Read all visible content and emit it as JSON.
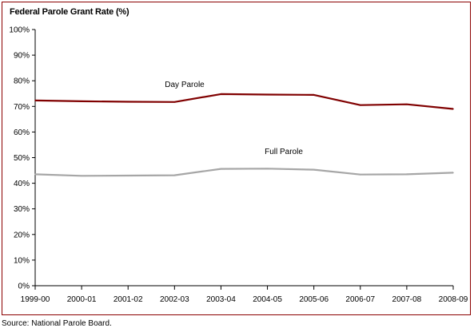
{
  "title": "Federal Parole Grant Rate (%)",
  "source": "Source:  National Parole Board.",
  "chart_data": {
    "type": "line",
    "title": "Federal Parole Grant Rate (%)",
    "xlabel": "",
    "ylabel": "",
    "categories": [
      "1999-00",
      "2000-01",
      "2001-02",
      "2002-03",
      "2003-04",
      "2004-05",
      "2005-06",
      "2006-07",
      "2007-08",
      "2008-09"
    ],
    "ylim": [
      0,
      100
    ],
    "yticks": [
      0,
      10,
      20,
      30,
      40,
      50,
      60,
      70,
      80,
      90,
      100
    ],
    "ytick_labels": [
      "0%",
      "10%",
      "20%",
      "30%",
      "40%",
      "50%",
      "60%",
      "70%",
      "80%",
      "90%",
      "100%"
    ],
    "grid": false,
    "legend": "inline labels",
    "series": [
      {
        "name": "Day Parole",
        "color": "#800000",
        "values": [
          72.3,
          72.0,
          71.8,
          71.7,
          74.8,
          74.6,
          74.5,
          70.5,
          70.8,
          69.0
        ]
      },
      {
        "name": "Full Parole",
        "color": "#a6a6a6",
        "values": [
          43.5,
          42.9,
          43.0,
          43.1,
          45.6,
          45.7,
          45.3,
          43.4,
          43.5,
          44.1
        ]
      }
    ]
  }
}
